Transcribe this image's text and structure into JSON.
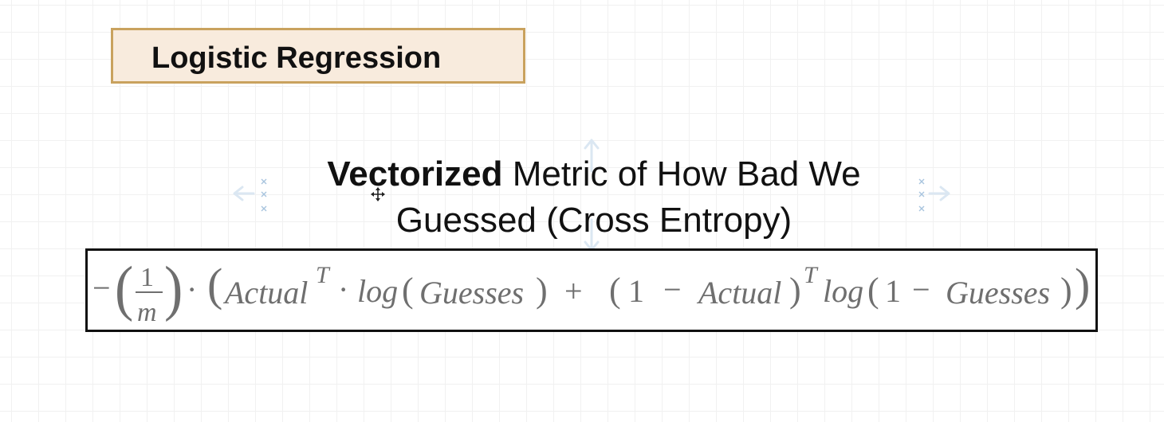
{
  "title": {
    "text": "Logistic Regression"
  },
  "heading": {
    "bold_part": "Vectorized",
    "line1_rest": " Metric of How Bad We",
    "line2": "Guessed (Cross Entropy)"
  },
  "formula": {
    "minus": "−",
    "numerator": "1",
    "denominator": "m",
    "dot": "·",
    "actual": "Actual",
    "transpose": "T",
    "log": "log",
    "guesses": "Guesses",
    "plus": "+",
    "one": "1",
    "minus_op": "−"
  },
  "colors": {
    "title_border": "#c9a25e",
    "title_fill": "#f8ebdd",
    "formula_text": "#6f6f6f"
  }
}
